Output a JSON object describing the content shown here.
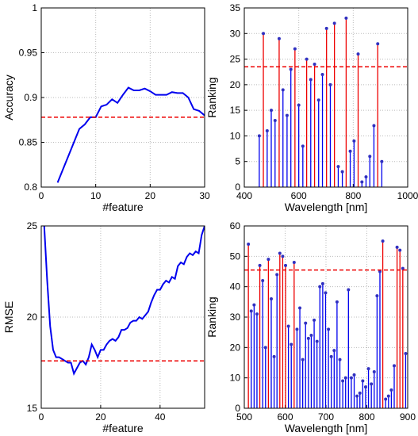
{
  "chart_data": [
    {
      "type": "line",
      "xlabel": "#feature",
      "ylabel": "Accuracy",
      "x": [
        3,
        4,
        5,
        6,
        7,
        8,
        9,
        10,
        11,
        12,
        13,
        14,
        15,
        16,
        17,
        18,
        19,
        20,
        21,
        22,
        23,
        24,
        25,
        26,
        27,
        28,
        29,
        30
      ],
      "values": [
        0.805,
        0.82,
        0.835,
        0.85,
        0.865,
        0.87,
        0.878,
        0.878,
        0.89,
        0.892,
        0.898,
        0.894,
        0.903,
        0.911,
        0.908,
        0.908,
        0.91,
        0.907,
        0.903,
        0.903,
        0.903,
        0.906,
        0.905,
        0.905,
        0.9,
        0.887,
        0.885,
        0.88
      ],
      "xlim": [
        0,
        30
      ],
      "ylim": [
        0.8,
        1
      ],
      "xticks": [
        0,
        10,
        20,
        30
      ],
      "yticks": [
        0.8,
        0.85,
        0.9,
        0.95,
        1
      ],
      "hline": 0.878,
      "color": "#0000ee",
      "hline_color": "#ee0000",
      "grid": true
    },
    {
      "type": "stem",
      "xlabel": "Wavelength [nm]",
      "ylabel": "Ranking",
      "x": [
        455,
        470,
        484,
        499,
        513,
        528,
        542,
        557,
        571,
        586,
        600,
        615,
        629,
        644,
        658,
        673,
        687,
        702,
        716,
        731,
        745,
        760,
        774,
        789,
        803,
        818,
        832,
        847,
        861,
        876,
        890,
        905
      ],
      "values": [
        10,
        30,
        11,
        15,
        13,
        29,
        19,
        14,
        23,
        27,
        16,
        8,
        25,
        21,
        24,
        17,
        22,
        31,
        20,
        32,
        4,
        3,
        33,
        7,
        9,
        26,
        1,
        2,
        6,
        12,
        28,
        5
      ],
      "xlim": [
        400,
        1000
      ],
      "ylim": [
        0,
        35
      ],
      "xticks": [
        400,
        600,
        800,
        1000
      ],
      "yticks": [
        0,
        5,
        10,
        15,
        20,
        25,
        30,
        35
      ],
      "hline": 23.5,
      "color": "#0000ee",
      "highlight_color": "#ee0000",
      "hline_color": "#ee0000",
      "marker_color": "#3030c0",
      "grid": true
    },
    {
      "type": "line",
      "xlabel": "#feature",
      "ylabel": "RMSE",
      "x": [
        1,
        2,
        3,
        4,
        5,
        6,
        7,
        8,
        9,
        10,
        11,
        12,
        13,
        14,
        15,
        16,
        17,
        18,
        19,
        20,
        21,
        22,
        23,
        24,
        25,
        26,
        27,
        28,
        29,
        30,
        31,
        32,
        33,
        34,
        35,
        36,
        37,
        38,
        39,
        40,
        41,
        42,
        43,
        44,
        45,
        46,
        47,
        48,
        49,
        50,
        51,
        52,
        53,
        54,
        55
      ],
      "values": [
        25,
        22,
        19.5,
        18.2,
        17.8,
        17.8,
        17.7,
        17.6,
        17.5,
        17.5,
        16.9,
        17.2,
        17.5,
        17.6,
        17.4,
        17.8,
        18.5,
        18.2,
        17.8,
        18.2,
        18.2,
        18.5,
        18.7,
        18.8,
        18.7,
        18.9,
        19.3,
        19.3,
        19.4,
        19.7,
        19.8,
        19.8,
        20,
        19.9,
        20.1,
        20.3,
        20.8,
        21.2,
        21.5,
        21.5,
        21.8,
        22,
        21.9,
        22.2,
        22.1,
        22.8,
        23,
        22.9,
        23.3,
        23.5,
        23.4,
        23.6,
        23.5,
        24.5,
        25
      ],
      "xlim": [
        0,
        55
      ],
      "ylim": [
        15,
        25
      ],
      "xticks": [
        0,
        20,
        40
      ],
      "yticks": [
        15,
        20,
        25
      ],
      "hline": 17.6,
      "color": "#0000ee",
      "hline_color": "#ee0000",
      "grid": true
    },
    {
      "type": "stem",
      "xlabel": "Wavelength [nm]",
      "ylabel": "Ranking",
      "x": [
        510,
        517,
        524,
        531,
        538,
        545,
        552,
        559,
        566,
        573,
        580,
        587,
        594,
        601,
        608,
        615,
        622,
        629,
        636,
        643,
        650,
        657,
        664,
        671,
        678,
        685,
        692,
        699,
        706,
        713,
        720,
        727,
        734,
        741,
        748,
        755,
        762,
        769,
        776,
        783,
        790,
        797,
        804,
        811,
        818,
        825,
        832,
        839,
        846,
        853,
        860,
        867,
        874,
        881,
        888,
        895
      ],
      "values": [
        54,
        32,
        34,
        31,
        47,
        42,
        20,
        49,
        36,
        17,
        44,
        51,
        50,
        47,
        27,
        21,
        48,
        26,
        33,
        16,
        28,
        23,
        24,
        29,
        22,
        40,
        41,
        38,
        26,
        17,
        19,
        35,
        16,
        9,
        10,
        39,
        10,
        11,
        4,
        5,
        9,
        7,
        13,
        8,
        12,
        37,
        45,
        55,
        3,
        4,
        6,
        14,
        53,
        52,
        46,
        18
      ],
      "xlim": [
        500,
        900
      ],
      "ylim": [
        0,
        60
      ],
      "xticks": [
        500,
        600,
        700,
        800,
        900
      ],
      "yticks": [
        0,
        10,
        20,
        30,
        40,
        50,
        60
      ],
      "hline": 45.5,
      "color": "#0000ee",
      "highlight_color": "#ee0000",
      "hline_color": "#ee0000",
      "marker_color": "#3030c0",
      "grid": true
    }
  ]
}
